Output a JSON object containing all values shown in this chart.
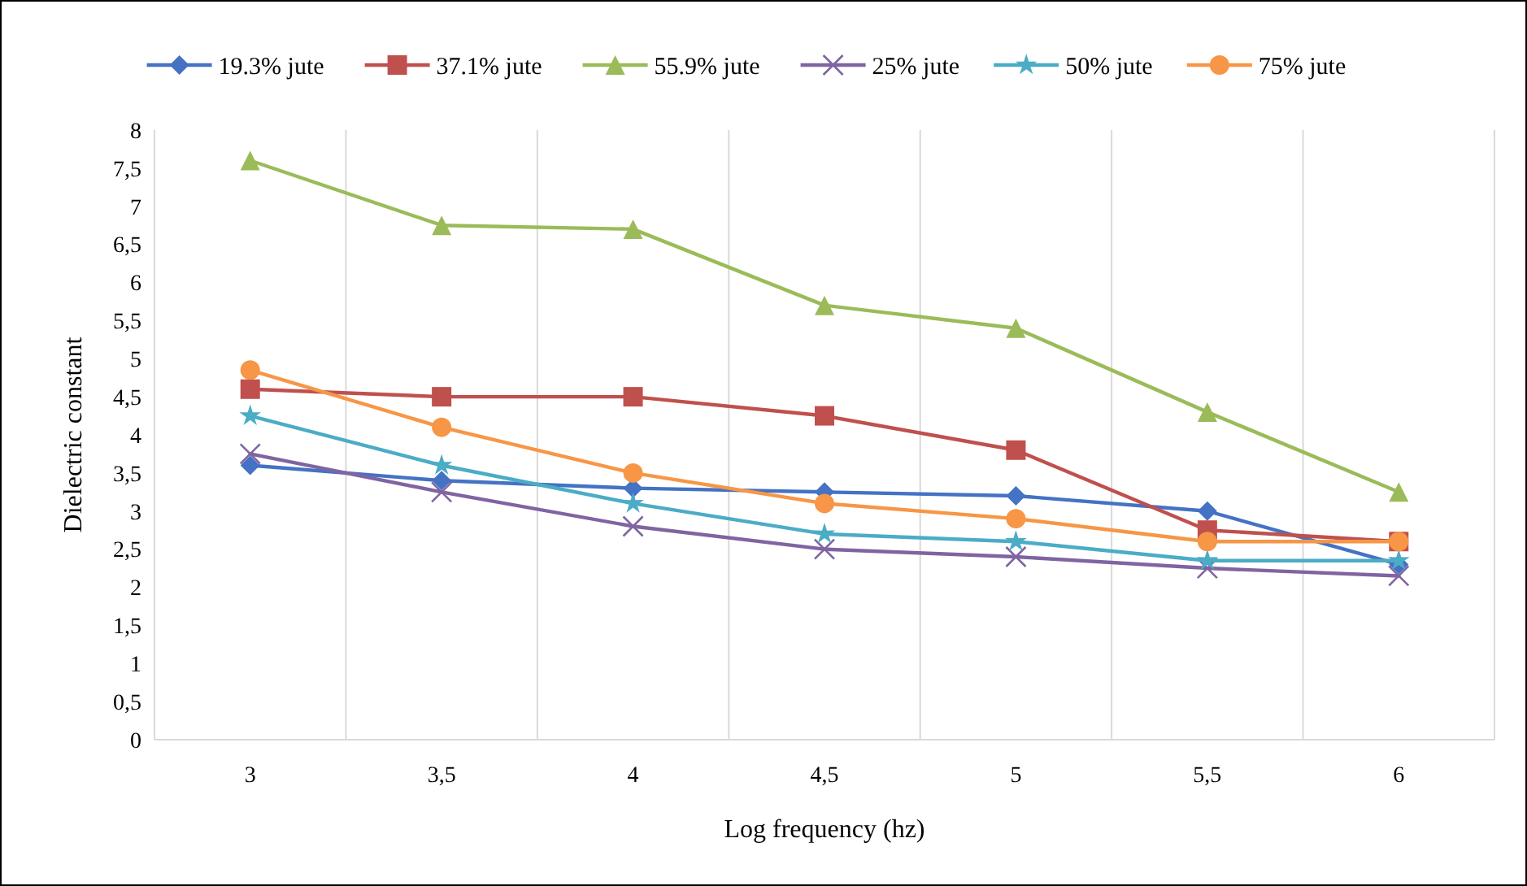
{
  "chart_data": {
    "type": "line",
    "xlabel": "Log frequency (hz)",
    "ylabel": "Dielectric constant",
    "categories": [
      "3",
      "3,5",
      "4",
      "4,5",
      "5",
      "5,5",
      "6"
    ],
    "series": [
      {
        "name": "19.3% jute",
        "color": "#4472c4",
        "marker": "diamond",
        "values": [
          3.6,
          3.4,
          3.3,
          3.25,
          3.2,
          3.0,
          2.3
        ]
      },
      {
        "name": "37.1% jute",
        "color": "#c0504d",
        "marker": "square",
        "values": [
          4.6,
          4.5,
          4.5,
          4.25,
          3.8,
          2.75,
          2.6
        ]
      },
      {
        "name": "55.9% jute",
        "color": "#9bbb59",
        "marker": "triangle",
        "values": [
          7.6,
          6.75,
          6.7,
          5.7,
          5.4,
          4.3,
          3.25
        ]
      },
      {
        "name": "25% jute",
        "color": "#8064a2",
        "marker": "cross",
        "values": [
          3.75,
          3.25,
          2.8,
          2.5,
          2.4,
          2.25,
          2.15
        ]
      },
      {
        "name": "50% jute",
        "color": "#4bacc6",
        "marker": "star",
        "values": [
          4.25,
          3.6,
          3.1,
          2.7,
          2.6,
          2.35,
          2.35
        ]
      },
      {
        "name": "75% jute",
        "color": "#f79646",
        "marker": "circle",
        "values": [
          4.85,
          4.1,
          3.5,
          3.1,
          2.9,
          2.6,
          2.6
        ]
      }
    ],
    "ylim": [
      0,
      8
    ],
    "yticks": [
      0,
      {
        "value": 0.5,
        "label": "0,5"
      },
      1,
      {
        "value": 1.5,
        "label": "1,5"
      },
      2,
      {
        "value": 2.5,
        "label": "2,5"
      },
      3,
      {
        "value": 3.5,
        "label": "3,5"
      },
      4,
      {
        "value": 4.5,
        "label": "4,5"
      },
      5,
      {
        "value": 5.5,
        "label": "5,5"
      },
      6,
      {
        "value": 6.5,
        "label": "6,5"
      },
      7,
      {
        "value": 7.5,
        "label": "7,5"
      },
      8
    ],
    "grid": "x",
    "legend": "top",
    "line_style": "solid"
  }
}
